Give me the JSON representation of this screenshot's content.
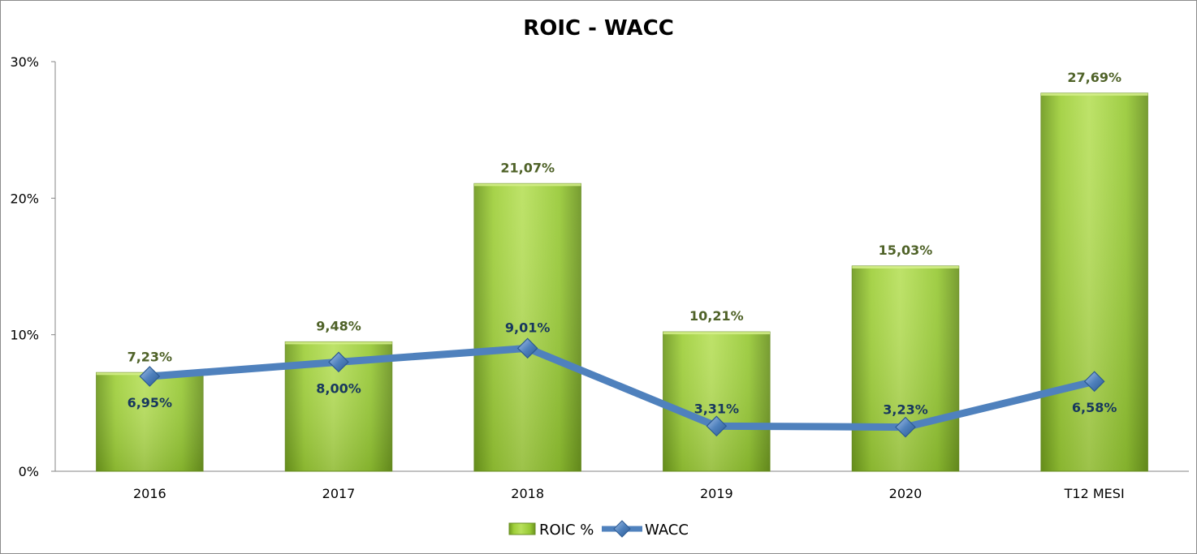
{
  "chart_data": {
    "type": "bar",
    "title": "ROIC - WACC",
    "xlabel": "",
    "ylabel": "",
    "categories": [
      "2016",
      "2017",
      "2018",
      "2019",
      "2020",
      "T12 MESI"
    ],
    "ylim": [
      0,
      30
    ],
    "yticks": [
      0,
      10,
      20,
      30
    ],
    "ytick_labels": [
      "0%",
      "10%",
      "20%",
      "30%"
    ],
    "grid": false,
    "legend_position": "bottom",
    "series": [
      {
        "name": "ROIC %",
        "type": "bar",
        "values": [
          7.23,
          9.48,
          21.07,
          10.21,
          15.03,
          27.69
        ],
        "labels": [
          "7,23%",
          "9,48%",
          "21,07%",
          "10,21%",
          "15,03%",
          "27,69%"
        ],
        "color": "#9acd32",
        "label_color": "#4f6228"
      },
      {
        "name": "WACC",
        "type": "line",
        "values": [
          6.95,
          8.0,
          9.01,
          3.31,
          3.23,
          6.58
        ],
        "labels": [
          "6,95%",
          "8,00%",
          "9,01%",
          "3,31%",
          "3,23%",
          "6,58%"
        ],
        "color": "#4f81bd",
        "label_color": "#17375e",
        "marker": "diamond"
      }
    ]
  }
}
